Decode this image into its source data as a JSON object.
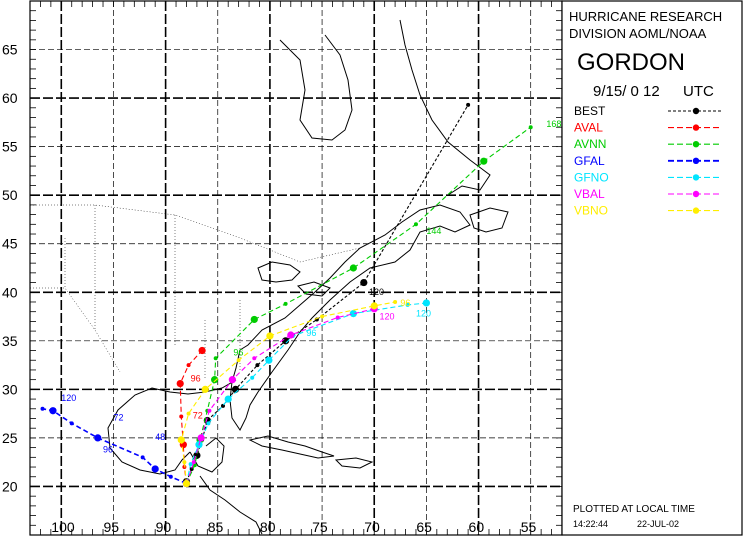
{
  "info_panel": {
    "org_line1": "HURRICANE RESEARCH",
    "org_line2": "DIVISION AOML/NOAA",
    "storm_name": "GORDON",
    "run_date": "9/15/ 0 12",
    "run_tz": "UTC",
    "plotted_note": "PLOTTED AT LOCAL TIME",
    "plot_time": "14:22:44",
    "plot_date": "22-JUL-02"
  },
  "legend": [
    {
      "label": "BEST",
      "color": "#000000",
      "dash": "3,2"
    },
    {
      "label": "AVAL",
      "color": "#ff0000",
      "dash": "6,3"
    },
    {
      "label": "AVNN",
      "color": "#00cc00",
      "dash": "6,3"
    },
    {
      "label": "GFAL",
      "color": "#0000ff",
      "dash": "6,3"
    },
    {
      "label": "GFNO",
      "color": "#00e5ff",
      "dash": "6,3"
    },
    {
      "label": "VBAL",
      "color": "#ff00ff",
      "dash": "6,3"
    },
    {
      "label": "VBNO",
      "color": "#ffee00",
      "dash": "6,3"
    }
  ],
  "map": {
    "lat_range": [
      15,
      70
    ],
    "lon_range": [
      -103,
      -52
    ],
    "lat_ticks": [
      20,
      25,
      30,
      35,
      40,
      45,
      50,
      55,
      60,
      65
    ],
    "lon_ticks": [
      -100,
      -95,
      -90,
      -85,
      -80,
      -75,
      -70,
      -65,
      -60,
      -55
    ],
    "lat_labels": [
      "20",
      "25",
      "30",
      "35",
      "40",
      "45",
      "50",
      "55",
      "60",
      "65"
    ],
    "lon_labels": [
      "100",
      "95",
      "90",
      "85",
      "80",
      "75",
      "70",
      "65",
      "60",
      "55"
    ],
    "tracks": [
      {
        "model": "BEST",
        "color": "#000000",
        "points": [
          [
            -88.0,
            20.5
          ],
          [
            -87.5,
            21.8
          ],
          [
            -87.0,
            23.2
          ],
          [
            -86.5,
            24.8
          ],
          [
            -86.0,
            26.8
          ],
          [
            -84.5,
            28.3
          ],
          [
            -83.3,
            30.0
          ],
          [
            -81.2,
            32.5
          ],
          [
            -78.5,
            35.0
          ],
          [
            -75.5,
            37.2
          ],
          [
            -71.0,
            41.0
          ],
          [
            -61.0,
            59.3
          ]
        ],
        "labels": [
          {
            "text": "120",
            "lon": -70.5,
            "lat": 39.7
          }
        ]
      },
      {
        "model": "AVAL",
        "color": "#ff0000",
        "points": [
          [
            -88.0,
            20.3
          ],
          [
            -88.2,
            22.0
          ],
          [
            -88.3,
            24.3
          ],
          [
            -88.5,
            27.2
          ],
          [
            -88.6,
            30.6
          ],
          [
            -87.8,
            32.5
          ],
          [
            -86.5,
            34.0
          ]
        ],
        "labels": [
          {
            "text": "96",
            "lon": -87.6,
            "lat": 30.8
          },
          {
            "text": "72",
            "lon": -87.4,
            "lat": 27.0
          }
        ]
      },
      {
        "model": "AVNN",
        "color": "#00cc00",
        "points": [
          [
            -88.0,
            20.3
          ],
          [
            -87.2,
            22.2
          ],
          [
            -86.7,
            24.8
          ],
          [
            -86.0,
            27.8
          ],
          [
            -85.3,
            31.0
          ],
          [
            -85.2,
            33.2
          ],
          [
            -81.5,
            37.2
          ],
          [
            -78.5,
            38.8
          ],
          [
            -72.0,
            42.5
          ],
          [
            -66.0,
            47.0
          ],
          [
            -59.5,
            53.5
          ],
          [
            -55.0,
            57.0
          ]
        ],
        "labels": [
          {
            "text": "168",
            "lon": -53.5,
            "lat": 57.0
          },
          {
            "text": "96",
            "lon": -83.5,
            "lat": 33.5
          },
          {
            "text": "144",
            "lon": -65.0,
            "lat": 46.0
          }
        ]
      },
      {
        "model": "GFAL",
        "color": "#0000ff",
        "points": [
          [
            -88.0,
            20.3
          ],
          [
            -89.5,
            21.0
          ],
          [
            -91.0,
            21.8
          ],
          [
            -92.2,
            23.0
          ],
          [
            -96.5,
            25.0
          ],
          [
            -99.0,
            26.5
          ],
          [
            -100.8,
            27.8
          ],
          [
            -101.8,
            28.0
          ]
        ],
        "labels": [
          {
            "text": "120",
            "lon": -100.0,
            "lat": 28.8
          },
          {
            "text": "72",
            "lon": -95.0,
            "lat": 26.8
          },
          {
            "text": "96",
            "lon": -96.0,
            "lat": 23.5
          },
          {
            "text": "48",
            "lon": -91.0,
            "lat": 24.8
          }
        ]
      },
      {
        "model": "GFNO",
        "color": "#00e5ff",
        "points": [
          [
            -88.0,
            20.3
          ],
          [
            -87.6,
            22.3
          ],
          [
            -86.8,
            24.3
          ],
          [
            -85.9,
            26.5
          ],
          [
            -84.0,
            29.0
          ],
          [
            -81.7,
            31.2
          ],
          [
            -80.1,
            33.0
          ],
          [
            -77.8,
            35.5
          ],
          [
            -72.0,
            37.8
          ],
          [
            -66.8,
            38.7
          ],
          [
            -65.0,
            38.9
          ]
        ],
        "labels": [
          {
            "text": "96",
            "lon": -76.5,
            "lat": 35.5
          },
          {
            "text": "120",
            "lon": -66.0,
            "lat": 37.5
          }
        ]
      },
      {
        "model": "VBAL",
        "color": "#ff00ff",
        "points": [
          [
            -88.0,
            20.3
          ],
          [
            -87.3,
            22.5
          ],
          [
            -86.6,
            25.0
          ],
          [
            -85.8,
            27.8
          ],
          [
            -83.6,
            31.0
          ],
          [
            -81.5,
            33.2
          ],
          [
            -78.0,
            35.6
          ],
          [
            -73.5,
            37.4
          ],
          [
            -70.0,
            38.3
          ]
        ],
        "labels": [
          {
            "text": "120",
            "lon": -69.5,
            "lat": 37.2
          }
        ]
      },
      {
        "model": "VBNO",
        "color": "#ffee00",
        "points": [
          [
            -88.0,
            20.3
          ],
          [
            -88.2,
            22.5
          ],
          [
            -88.5,
            24.8
          ],
          [
            -87.8,
            27.5
          ],
          [
            -86.2,
            30.0
          ],
          [
            -83.0,
            33.0
          ],
          [
            -80.0,
            35.5
          ],
          [
            -75.0,
            37.5
          ],
          [
            -70.0,
            38.6
          ],
          [
            -68.0,
            39.0
          ]
        ],
        "labels": [
          {
            "text": "96",
            "lon": -67.5,
            "lat": 38.6
          }
        ]
      }
    ]
  }
}
